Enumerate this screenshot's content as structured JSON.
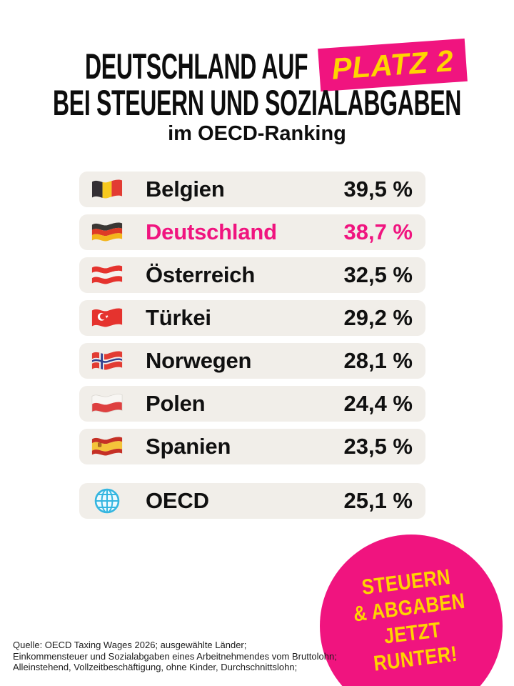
{
  "title": {
    "line1": "DEUTSCHLAND AUF",
    "highlight": "PLATZ 2",
    "line2": "BEI STEUERN UND SOZIALABGABEN",
    "subtitle": "im OECD-Ranking"
  },
  "colors": {
    "accent_pink": "#F0147F",
    "accent_yellow": "#FFD400",
    "row_background": "#F1EEE9"
  },
  "ranking": {
    "rows": [
      {
        "country": "Belgien",
        "flag": "belgium",
        "value": "39,5 %",
        "highlight": false
      },
      {
        "country": "Deutschland",
        "flag": "germany",
        "value": "38,7 %",
        "highlight": true
      },
      {
        "country": "Österreich",
        "flag": "austria",
        "value": "32,5 %",
        "highlight": false
      },
      {
        "country": "Türkei",
        "flag": "turkey",
        "value": "29,2 %",
        "highlight": false
      },
      {
        "country": "Norwegen",
        "flag": "norway",
        "value": "28,1 %",
        "highlight": false
      },
      {
        "country": "Polen",
        "flag": "poland",
        "value": "24,4 %",
        "highlight": false
      },
      {
        "country": "Spanien",
        "flag": "spain",
        "value": "23,5 %",
        "highlight": false
      }
    ],
    "summary_row": {
      "label": "OECD",
      "icon": "globe-icon",
      "value": "25,1 %"
    }
  },
  "badge": {
    "lines": [
      "STEUERN",
      "& ABGABEN",
      "JETZT",
      "RUNTER!"
    ]
  },
  "source": {
    "lines": [
      "Quelle: OECD Taxing Wages 2026; ausgewählte Länder;",
      "Einkommensteuer und Sozialabgaben eines Arbeitnehmendes vom Bruttolohn;",
      "Alleinstehend, Vollzeitbeschäftigung, ohne Kinder, Durchschnittslohn;"
    ]
  },
  "chart_data": {
    "type": "table",
    "title": "Deutschland auf Platz 2 bei Steuern und Sozialabgaben im OECD-Ranking",
    "categories": [
      "Belgien",
      "Deutschland",
      "Österreich",
      "Türkei",
      "Norwegen",
      "Polen",
      "Spanien",
      "OECD"
    ],
    "values": [
      39.5,
      38.7,
      32.5,
      29.2,
      28.1,
      24.4,
      23.5,
      25.1
    ],
    "unit": "%",
    "highlighted_category": "Deutschland",
    "oecd_average": 25.1,
    "legend_position": "none",
    "grid": false
  }
}
